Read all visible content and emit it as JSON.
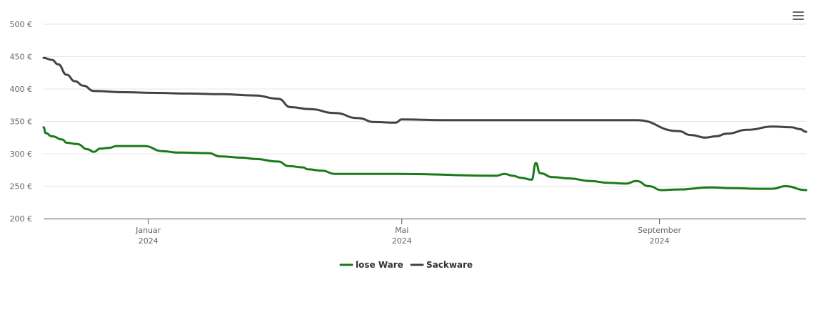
{
  "chart_data": {
    "type": "line",
    "currency": "€",
    "ylim": [
      200,
      500
    ],
    "yticks": [
      200,
      250,
      300,
      350,
      400,
      450,
      500
    ],
    "grid": true,
    "legend_position": "bottom-center",
    "x_ticks": [
      {
        "date": "2024-01-01",
        "month": "Januar",
        "year": "2024"
      },
      {
        "date": "2024-05-01",
        "month": "Mai",
        "year": "2024"
      },
      {
        "date": "2024-09-01",
        "month": "September",
        "year": "2024"
      }
    ],
    "x_range": [
      "2023-11-12",
      "2024-11-10"
    ],
    "series": [
      {
        "name": "lose Ware",
        "color": "#1a7a1a",
        "points": [
          [
            "2023-11-12",
            341
          ],
          [
            "2023-11-13",
            332
          ],
          [
            "2023-11-16",
            327
          ],
          [
            "2023-11-21",
            322
          ],
          [
            "2023-11-23",
            317
          ],
          [
            "2023-11-28",
            315
          ],
          [
            "2023-12-03",
            307
          ],
          [
            "2023-12-06",
            303
          ],
          [
            "2023-12-09",
            308
          ],
          [
            "2023-12-13",
            309
          ],
          [
            "2023-12-17",
            312
          ],
          [
            "2023-12-30",
            312
          ],
          [
            "2024-01-08",
            304
          ],
          [
            "2024-01-15",
            302
          ],
          [
            "2024-01-30",
            301
          ],
          [
            "2024-02-04",
            296
          ],
          [
            "2024-02-15",
            294
          ],
          [
            "2024-02-21",
            292
          ],
          [
            "2024-03-03",
            288
          ],
          [
            "2024-03-08",
            281
          ],
          [
            "2024-03-15",
            279
          ],
          [
            "2024-03-17",
            276
          ],
          [
            "2024-03-24",
            274
          ],
          [
            "2024-03-30",
            269
          ],
          [
            "2024-04-30",
            269
          ],
          [
            "2024-06-15",
            266
          ],
          [
            "2024-06-19",
            269
          ],
          [
            "2024-06-23",
            266
          ],
          [
            "2024-06-27",
            263
          ],
          [
            "2024-07-02",
            260
          ],
          [
            "2024-07-04",
            286
          ],
          [
            "2024-07-06",
            270
          ],
          [
            "2024-07-12",
            264
          ],
          [
            "2024-07-20",
            262
          ],
          [
            "2024-07-30",
            258
          ],
          [
            "2024-08-08",
            255
          ],
          [
            "2024-08-16",
            254
          ],
          [
            "2024-08-21",
            258
          ],
          [
            "2024-08-27",
            250
          ],
          [
            "2024-09-02",
            244
          ],
          [
            "2024-09-10",
            245
          ],
          [
            "2024-09-25",
            248
          ],
          [
            "2024-10-05",
            247
          ],
          [
            "2024-10-18",
            246
          ],
          [
            "2024-10-25",
            246
          ],
          [
            "2024-10-31",
            250
          ],
          [
            "2024-11-10",
            244
          ]
        ]
      },
      {
        "name": "Sackware",
        "color": "#434343",
        "points": [
          [
            "2023-11-12",
            448
          ],
          [
            "2023-11-16",
            445
          ],
          [
            "2023-11-19",
            438
          ],
          [
            "2023-11-23",
            422
          ],
          [
            "2023-11-27",
            412
          ],
          [
            "2023-12-01",
            405
          ],
          [
            "2023-12-06",
            397
          ],
          [
            "2023-12-20",
            395
          ],
          [
            "2024-01-05",
            394
          ],
          [
            "2024-01-20",
            393
          ],
          [
            "2024-02-05",
            392
          ],
          [
            "2024-02-21",
            390
          ],
          [
            "2024-03-03",
            385
          ],
          [
            "2024-03-09",
            372
          ],
          [
            "2024-03-18",
            369
          ],
          [
            "2024-03-30",
            363
          ],
          [
            "2024-04-10",
            355
          ],
          [
            "2024-04-18",
            349
          ],
          [
            "2024-04-28",
            348
          ],
          [
            "2024-05-01",
            353
          ],
          [
            "2024-05-21",
            352
          ],
          [
            "2024-06-15",
            352
          ],
          [
            "2024-07-20",
            352
          ],
          [
            "2024-08-21",
            352
          ],
          [
            "2024-09-10",
            335
          ],
          [
            "2024-09-16",
            329
          ],
          [
            "2024-09-23",
            325
          ],
          [
            "2024-09-28",
            327
          ],
          [
            "2024-10-03",
            331
          ],
          [
            "2024-10-13",
            337
          ],
          [
            "2024-10-25",
            342
          ],
          [
            "2024-11-03",
            341
          ],
          [
            "2024-11-07",
            338
          ],
          [
            "2024-11-10",
            334
          ]
        ]
      }
    ]
  }
}
